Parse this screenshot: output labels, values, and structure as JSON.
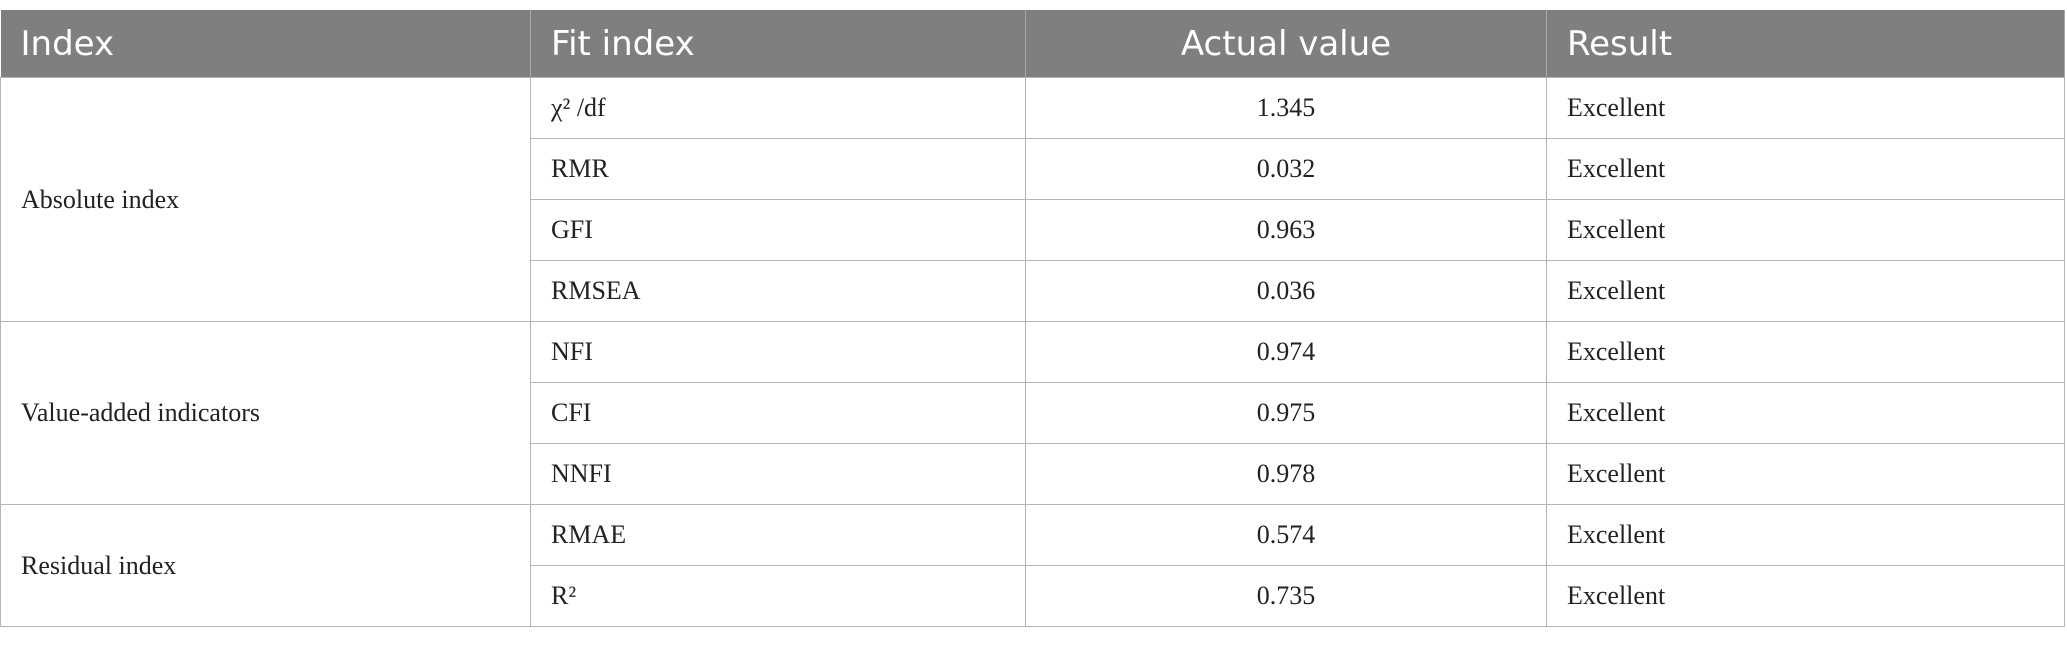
{
  "table": {
    "header": [
      "Index",
      "Fit index",
      "Actual value",
      "Result"
    ],
    "groups": [
      {
        "label": "Absolute index",
        "rows": [
          [
            "χ² /df",
            1.345,
            "Excellent"
          ],
          [
            "RMR",
            0.032,
            "Excellent"
          ],
          [
            "GFI",
            0.963,
            "Excellent"
          ],
          [
            "RMSEA",
            0.036,
            "Excellent"
          ]
        ]
      },
      {
        "label": "Value-added indicators",
        "rows": [
          [
            "NFI",
            0.974,
            "Excellent"
          ],
          [
            "CFI",
            0.975,
            "Excellent"
          ],
          [
            "NNFI",
            0.978,
            "Excellent"
          ]
        ]
      },
      {
        "label": "Residual index",
        "rows": [
          [
            "RMAE",
            0.574,
            "Excellent"
          ],
          [
            "R²",
            0.735,
            "Excellent"
          ]
        ]
      }
    ]
  }
}
